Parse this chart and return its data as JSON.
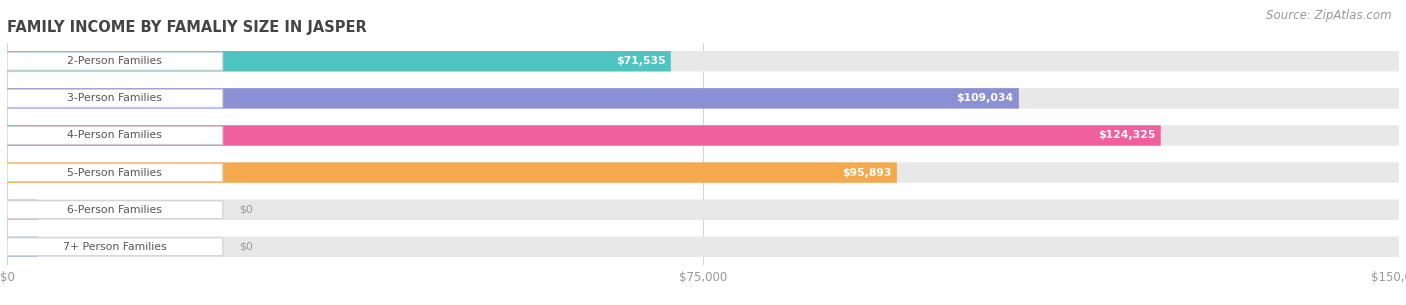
{
  "title": "FAMILY INCOME BY FAMALIY SIZE IN JASPER",
  "source": "Source: ZipAtlas.com",
  "categories": [
    "2-Person Families",
    "3-Person Families",
    "4-Person Families",
    "5-Person Families",
    "6-Person Families",
    "7+ Person Families"
  ],
  "values": [
    71535,
    109034,
    124325,
    95893,
    0,
    0
  ],
  "display_values": [
    "$71,535",
    "$109,034",
    "$124,325",
    "$95,893",
    "$0",
    "$0"
  ],
  "bar_colors": [
    "#4ec5c1",
    "#8b8fd4",
    "#f0609e",
    "#f5a94e",
    "#f2a8b0",
    "#a8bfe0"
  ],
  "bar_bg_color": "#e8e8e8",
  "bg_color": "#ffffff",
  "xmax": 150000,
  "xtick_labels": [
    "$0",
    "$75,000",
    "$150,000"
  ],
  "title_fontsize": 10.5,
  "source_fontsize": 8.5,
  "label_fontsize": 7.8,
  "value_fontsize": 7.8
}
